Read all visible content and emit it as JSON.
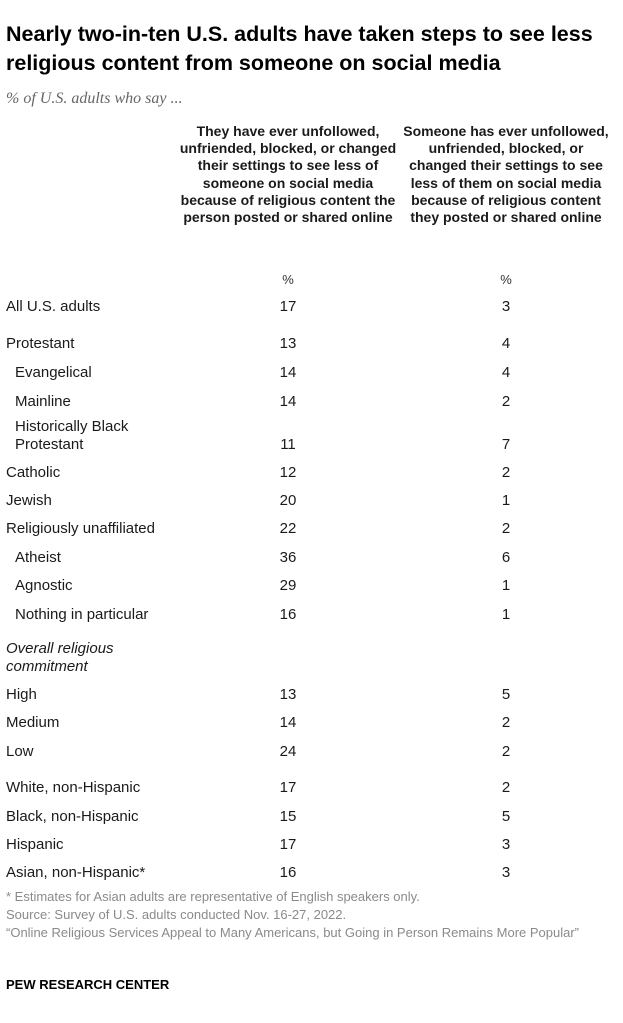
{
  "title": "Nearly two-in-ten U.S. adults have taken steps to see less religious content from someone on social media",
  "subtitle": "% of U.S. adults who say ...",
  "columns": [
    {
      "header": "They have ever unfollowed, unfriended, blocked, or changed their settings to see less of someone on social media because of religious content the person posted or shared online",
      "unit": "%"
    },
    {
      "header": "Someone has ever unfollowed, unfriended, blocked, or changed their settings to see less of them on social media because of religious content they posted or shared online",
      "unit": "%"
    }
  ],
  "chart_data": {
    "type": "table",
    "title": "Nearly two-in-ten U.S. adults have taken steps to see less religious content from someone on social media",
    "subtitle": "% of U.S. adults who say ...",
    "columns": [
      "They have ever unfollowed, unfriended, blocked, or changed their settings to see less of someone on social media because of religious content the person posted or shared online",
      "Someone has ever unfollowed, unfriended, blocked, or changed their settings to see less of them on social media because of religious content they posted or shared online"
    ],
    "rows": [
      {
        "label": "All U.S. adults",
        "values": [
          17,
          3
        ]
      },
      {
        "label": "Protestant",
        "values": [
          13,
          4
        ]
      },
      {
        "label": "Evangelical",
        "values": [
          14,
          4
        ]
      },
      {
        "label": "Mainline",
        "values": [
          14,
          2
        ]
      },
      {
        "label": "Historically Black Protestant",
        "values": [
          11,
          7
        ]
      },
      {
        "label": "Catholic",
        "values": [
          12,
          2
        ]
      },
      {
        "label": "Jewish",
        "values": [
          20,
          1
        ]
      },
      {
        "label": "Religiously unaffiliated",
        "values": [
          22,
          2
        ]
      },
      {
        "label": "Atheist",
        "values": [
          36,
          6
        ]
      },
      {
        "label": "Agnostic",
        "values": [
          29,
          1
        ]
      },
      {
        "label": "Nothing in particular",
        "values": [
          16,
          1
        ]
      },
      {
        "label": "Overall religious commitment",
        "values": null
      },
      {
        "label": "High",
        "values": [
          13,
          5
        ]
      },
      {
        "label": "Medium",
        "values": [
          14,
          2
        ]
      },
      {
        "label": "Low",
        "values": [
          24,
          2
        ]
      },
      {
        "label": "White, non-Hispanic",
        "values": [
          17,
          2
        ]
      },
      {
        "label": "Black, non-Hispanic",
        "values": [
          15,
          5
        ]
      },
      {
        "label": "Hispanic",
        "values": [
          17,
          3
        ]
      },
      {
        "label": "Asian, non-Hispanic*",
        "values": [
          16,
          3
        ]
      }
    ]
  },
  "table_rows": [
    {
      "label": "All U.S. adults",
      "v1": "17",
      "v2": "3"
    },
    {
      "label": "Protestant",
      "v1": "13",
      "v2": "4"
    },
    {
      "label": "Evangelical",
      "v1": "14",
      "v2": "4"
    },
    {
      "label": "Mainline",
      "v1": "14",
      "v2": "2"
    },
    {
      "label": "Historically Black\nProtestant",
      "v1": "11",
      "v2": "7"
    },
    {
      "label": "Catholic",
      "v1": "12",
      "v2": "2"
    },
    {
      "label": "Jewish",
      "v1": "20",
      "v2": "1"
    },
    {
      "label": "Religiously unaffiliated",
      "v1": "22",
      "v2": "2"
    },
    {
      "label": "Atheist",
      "v1": "36",
      "v2": "6"
    },
    {
      "label": "Agnostic",
      "v1": "29",
      "v2": "1"
    },
    {
      "label": "Nothing in particular",
      "v1": "16",
      "v2": "1"
    },
    {
      "label": "Overall religious\ncommitment",
      "v1": "",
      "v2": ""
    },
    {
      "label": "High",
      "v1": "13",
      "v2": "5"
    },
    {
      "label": "Medium",
      "v1": "14",
      "v2": "2"
    },
    {
      "label": "Low",
      "v1": "24",
      "v2": "2"
    },
    {
      "label": "White, non-Hispanic",
      "v1": "17",
      "v2": "2"
    },
    {
      "label": "Black, non-Hispanic",
      "v1": "15",
      "v2": "5"
    },
    {
      "label": "Hispanic",
      "v1": "17",
      "v2": "3"
    },
    {
      "label": "Asian, non-Hispanic*",
      "v1": "16",
      "v2": "3"
    }
  ],
  "notes": {
    "asterisk": "* Estimates for Asian adults are representative of English speakers only.",
    "source": "Source: Survey of U.S. adults conducted Nov. 16-27, 2022.",
    "report": "“Online Religious Services Appeal to Many Americans, but Going in Person Remains More Popular”"
  },
  "brand": "PEW RESEARCH CENTER"
}
